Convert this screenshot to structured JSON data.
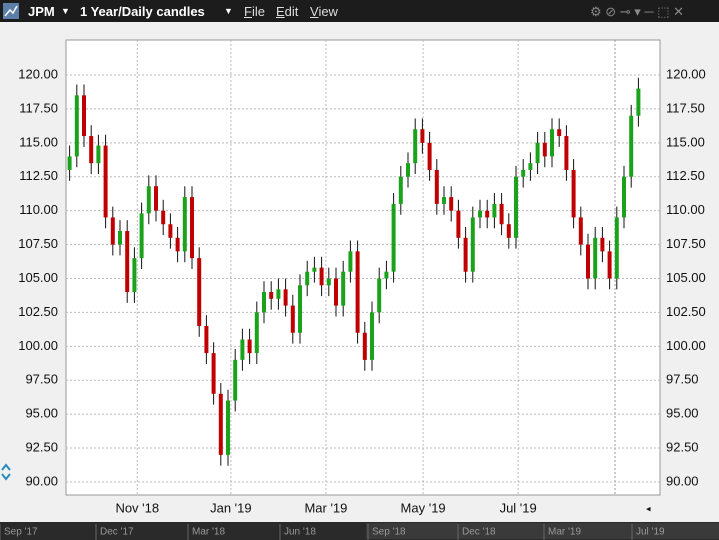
{
  "toolbar": {
    "symbol": "JPM",
    "period": "1 Year/Daily candles",
    "menu": [
      "File",
      "Edit",
      "View"
    ]
  },
  "navigator": {
    "labels": [
      "Sep '17",
      "Dec '17",
      "Mar '18",
      "Jun '18",
      "Sep '18",
      "Dec '18",
      "Mar '19",
      "Jul '19"
    ]
  },
  "chart_data": {
    "type": "candlestick",
    "up_color": "#1aa31a",
    "down_color": "#c00000",
    "grid": true,
    "xlim": [
      -0.5,
      82
    ],
    "ylim": [
      89.04,
      122.58
    ],
    "xticks": [
      {
        "value": 9.4,
        "label": "Nov '18"
      },
      {
        "value": 22.4,
        "label": "Jan '19"
      },
      {
        "value": 35.6,
        "label": "Mar '19"
      },
      {
        "value": 49.1,
        "label": "May '19"
      },
      {
        "value": 62.3,
        "label": "Jul '19"
      }
    ],
    "yticks": [
      {
        "value": 90,
        "label": "90.00"
      },
      {
        "value": 92.5,
        "label": "92.50"
      },
      {
        "value": 95,
        "label": "95.00"
      },
      {
        "value": 97.5,
        "label": "97.50"
      },
      {
        "value": 100,
        "label": "100.00"
      },
      {
        "value": 102.5,
        "label": "102.50"
      },
      {
        "value": 105,
        "label": "105.00"
      },
      {
        "value": 107.5,
        "label": "107.50"
      },
      {
        "value": 110,
        "label": "110.00"
      },
      {
        "value": 112.5,
        "label": "112.50"
      },
      {
        "value": 115,
        "label": "115.00"
      },
      {
        "value": 117.5,
        "label": "117.50"
      },
      {
        "value": 120,
        "label": "120.00"
      }
    ],
    "open": [
      113.0,
      114.0,
      118.5,
      115.5,
      113.5,
      114.8,
      109.5,
      107.5,
      108.5,
      104.0,
      106.5,
      109.8,
      111.8,
      110.0,
      109.0,
      108.0,
      107.0,
      111.0,
      106.5,
      101.5,
      99.5,
      96.5,
      92.0,
      96.0,
      99.0,
      100.5,
      99.5,
      102.5,
      104.0,
      103.5,
      104.2,
      103.0,
      101.0,
      104.5,
      105.5,
      105.8,
      104.5,
      105.0,
      103.0,
      105.5,
      107.0,
      101.0,
      99.0,
      102.5,
      105.0,
      105.5,
      110.5,
      112.5,
      113.5,
      116.0,
      115.0,
      113.0,
      110.5,
      111.0,
      110.0,
      108.0,
      105.5,
      109.5,
      110.0,
      109.5,
      110.5,
      109.0,
      108.0,
      112.5,
      113.0,
      113.5,
      115.0,
      114.0,
      116.0,
      115.5,
      113.0,
      109.5,
      107.5,
      105.0,
      108.0,
      107.0,
      105.0,
      109.5,
      112.5,
      117.0
    ],
    "high": [
      114.8,
      119.3,
      119.3,
      116.3,
      115.6,
      115.6,
      110.3,
      109.3,
      109.3,
      107.3,
      110.6,
      112.6,
      112.6,
      110.8,
      109.8,
      108.8,
      111.8,
      111.8,
      107.3,
      102.3,
      100.3,
      97.3,
      96.8,
      99.8,
      101.3,
      101.3,
      103.3,
      104.8,
      104.8,
      105.0,
      105.0,
      103.8,
      105.3,
      106.3,
      106.6,
      106.6,
      105.8,
      105.8,
      106.3,
      107.8,
      107.8,
      101.8,
      103.3,
      105.8,
      106.3,
      111.3,
      113.3,
      114.3,
      116.8,
      116.8,
      115.8,
      113.8,
      111.8,
      111.8,
      110.8,
      108.8,
      110.3,
      110.8,
      110.8,
      111.3,
      111.3,
      109.8,
      113.3,
      113.8,
      114.3,
      115.8,
      115.8,
      116.8,
      116.8,
      116.3,
      113.8,
      110.3,
      108.3,
      108.8,
      108.8,
      107.8,
      110.3,
      113.3,
      117.8,
      119.8
    ],
    "low": [
      112.2,
      113.2,
      114.7,
      112.7,
      112.7,
      108.7,
      106.7,
      106.7,
      103.2,
      103.2,
      105.7,
      109.0,
      109.2,
      108.2,
      107.2,
      106.2,
      106.2,
      105.7,
      100.7,
      98.7,
      95.7,
      91.2,
      91.2,
      95.2,
      98.2,
      98.7,
      98.7,
      101.7,
      102.7,
      102.7,
      102.2,
      100.2,
      100.2,
      103.7,
      104.7,
      103.7,
      103.7,
      102.2,
      102.2,
      104.7,
      100.2,
      98.2,
      98.2,
      101.7,
      104.2,
      104.7,
      109.7,
      111.7,
      112.7,
      114.2,
      112.2,
      109.7,
      109.7,
      109.2,
      107.2,
      104.7,
      104.7,
      108.7,
      108.7,
      108.7,
      108.2,
      107.2,
      107.2,
      111.7,
      112.2,
      112.7,
      113.2,
      113.2,
      114.7,
      112.2,
      108.7,
      106.7,
      104.2,
      104.2,
      106.2,
      104.2,
      104.2,
      108.7,
      111.7,
      116.2
    ],
    "close": [
      114.0,
      118.5,
      115.5,
      113.5,
      114.8,
      109.5,
      107.5,
      108.5,
      104.0,
      106.5,
      109.8,
      111.8,
      110.0,
      109.0,
      108.0,
      107.0,
      111.0,
      106.5,
      101.5,
      99.5,
      96.5,
      92.0,
      96.0,
      99.0,
      100.5,
      99.5,
      102.5,
      104.0,
      103.5,
      104.2,
      103.0,
      101.0,
      104.5,
      105.5,
      105.8,
      104.5,
      105.0,
      103.0,
      105.5,
      107.0,
      101.0,
      99.0,
      102.5,
      105.0,
      105.5,
      110.5,
      112.5,
      113.5,
      116.0,
      115.0,
      113.0,
      110.5,
      111.0,
      110.0,
      108.0,
      105.5,
      109.5,
      110.0,
      109.5,
      110.5,
      109.0,
      108.0,
      112.5,
      113.0,
      113.5,
      115.0,
      114.0,
      116.0,
      115.5,
      113.0,
      109.5,
      107.5,
      105.0,
      108.0,
      107.0,
      105.0,
      109.5,
      112.5,
      117.0,
      119.0
    ]
  }
}
